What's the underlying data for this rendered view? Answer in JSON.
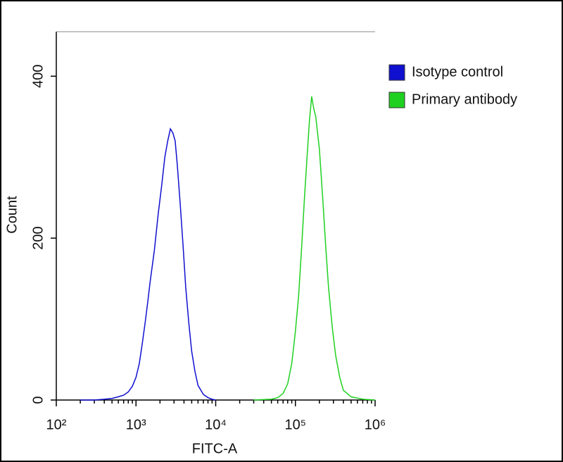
{
  "chart_data": {
    "type": "line",
    "x_label": "FITC-A",
    "y_label": "Count",
    "x_scale": "log",
    "legend": "top-right",
    "xlim": [
      100,
      1000000
    ],
    "xticks": [
      {
        "value": 100,
        "label": "10²"
      },
      {
        "value": 1000,
        "label": "10³"
      },
      {
        "value": 10000,
        "label": "10⁴"
      },
      {
        "value": 100000,
        "label": "10⁵"
      },
      {
        "value": 1000000,
        "label": "10⁶"
      }
    ],
    "ylim": [
      0,
      455
    ],
    "yticks": [
      0,
      200,
      400
    ],
    "series": [
      {
        "name": "Isotype control",
        "color": "#1010d0",
        "x": [
          200,
          300,
          400,
          500,
          600,
          700,
          800,
          900,
          1000,
          1100,
          1200,
          1300,
          1400,
          1500,
          1700,
          1900,
          2100,
          2300,
          2500,
          2700,
          2900,
          3100,
          3300,
          3600,
          3900,
          4200,
          4600,
          5000,
          5500,
          6000,
          7000,
          8000,
          9000,
          10000
        ],
        "values": [
          0,
          0,
          1,
          2,
          4,
          6,
          10,
          17,
          28,
          45,
          70,
          95,
          120,
          145,
          185,
          230,
          265,
          300,
          320,
          335,
          330,
          320,
          290,
          240,
          190,
          140,
          95,
          60,
          35,
          18,
          7,
          3,
          1,
          0
        ]
      },
      {
        "name": "Primary antibody",
        "color": "#20d020",
        "x": [
          30000,
          50000,
          60000,
          70000,
          80000,
          90000,
          100000,
          110000,
          120000,
          130000,
          140000,
          150000,
          160000,
          170000,
          180000,
          200000,
          220000,
          240000,
          260000,
          290000,
          320000,
          360000,
          400000,
          500000,
          700000,
          1000000
        ],
        "values": [
          0,
          1,
          3,
          8,
          20,
          45,
          85,
          130,
          190,
          250,
          300,
          345,
          375,
          360,
          350,
          310,
          250,
          190,
          140,
          90,
          55,
          28,
          12,
          4,
          1,
          0
        ]
      }
    ]
  }
}
